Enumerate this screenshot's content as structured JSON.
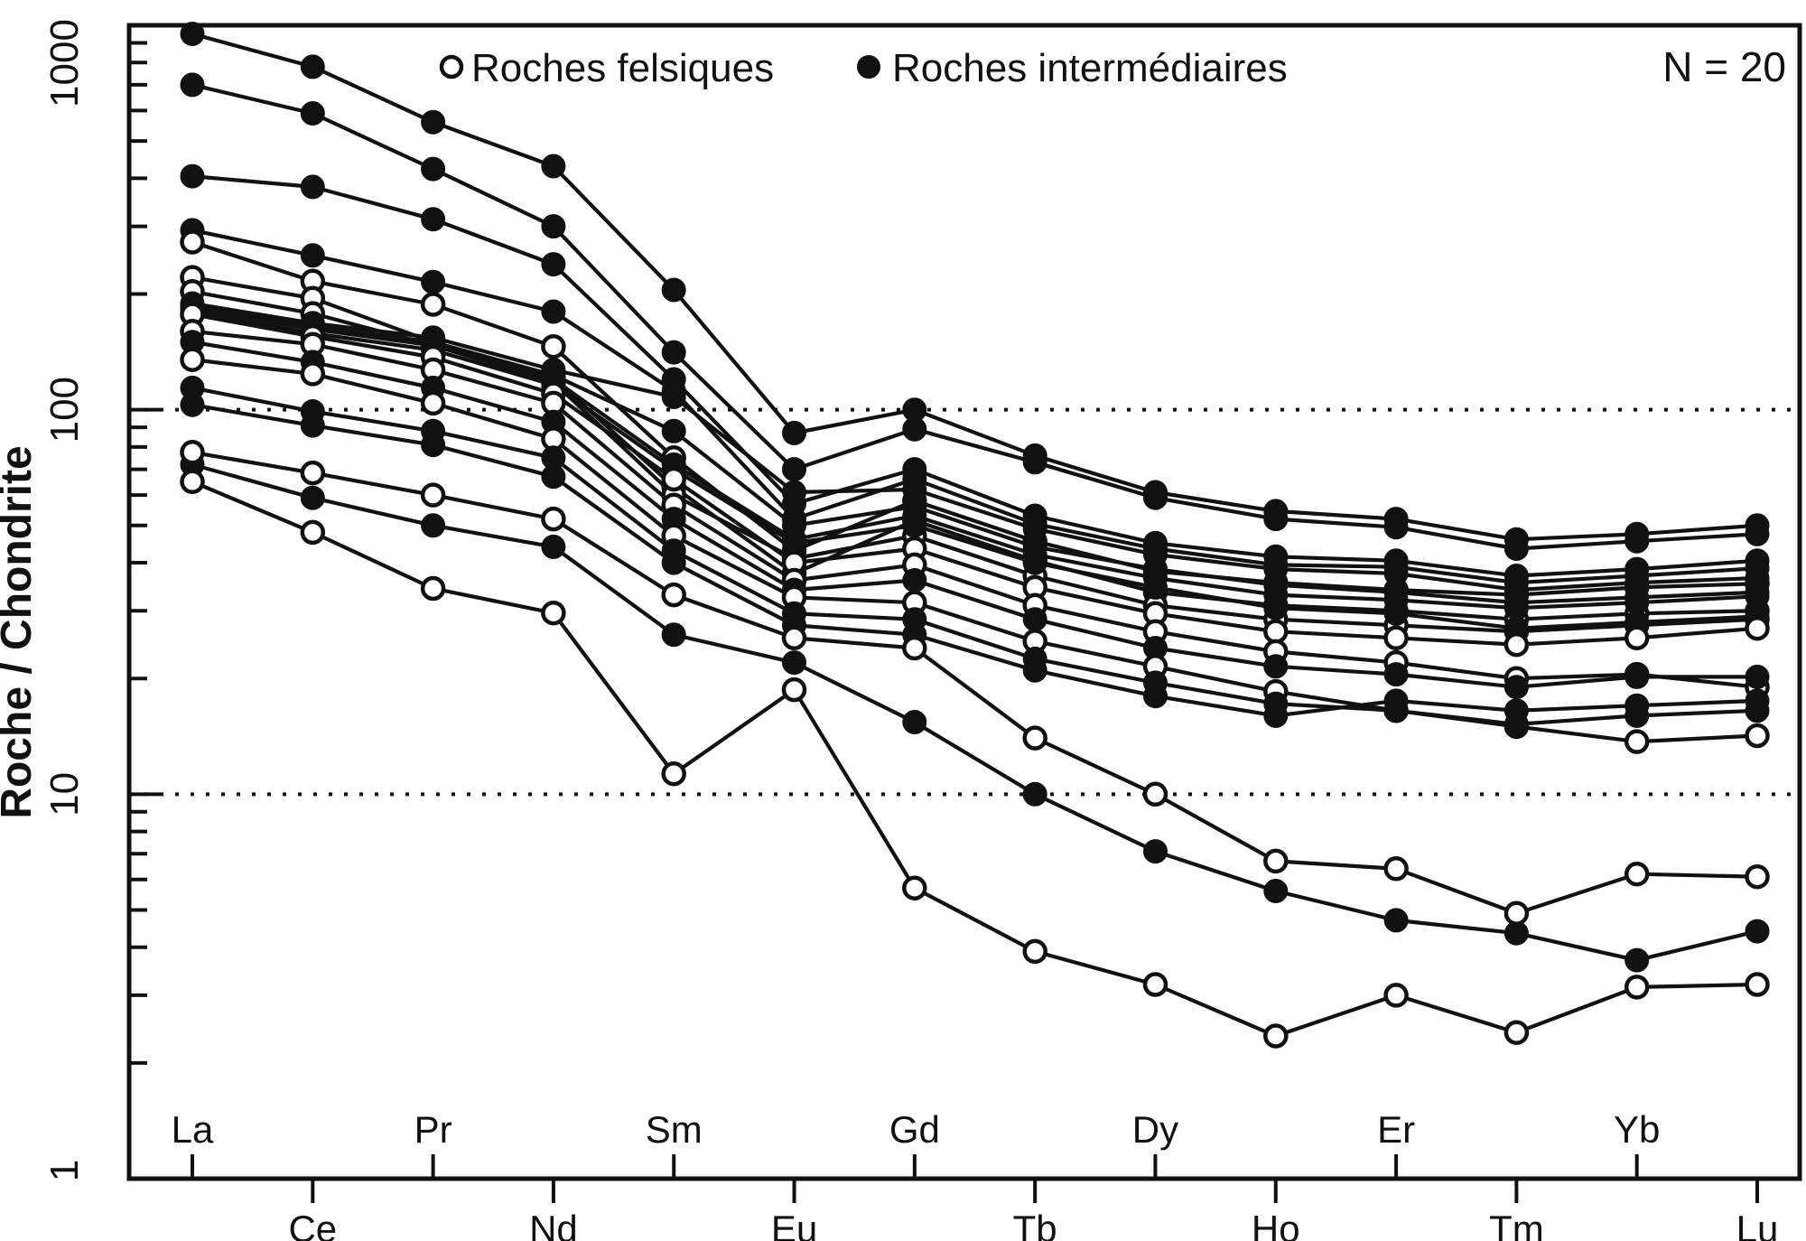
{
  "chart_data": {
    "type": "line",
    "title": "",
    "xlabel": "",
    "ylabel": "Roche / Chondrite",
    "annotation": "N = 20",
    "y_scale": "log",
    "ylim": [
      1,
      1000
    ],
    "y_ticks": [
      {
        "value": 1,
        "label": "1"
      },
      {
        "value": 10,
        "label": "10"
      },
      {
        "value": 100,
        "label": "100"
      },
      {
        "value": 1000,
        "label": "1000"
      }
    ],
    "dotted_gridlines": [
      10,
      100
    ],
    "grid": "horizontal-dotted-at-10-and-100-only",
    "legend_position": "top-inside",
    "legend": [
      {
        "label": "Roches felsiques",
        "marker": "open-circle"
      },
      {
        "label": "Roches intermédiaires",
        "marker": "filled-circle"
      }
    ],
    "categories": [
      "La",
      "Ce",
      "Pr",
      "Nd",
      "Sm",
      "Eu",
      "Gd",
      "Tb",
      "Dy",
      "Ho",
      "Er",
      "Tm",
      "Yb",
      "Lu"
    ],
    "series": [
      {
        "name": "intermediaire-01",
        "group": "Roches intermédiaires",
        "marker": "filled",
        "values": [
          950,
          780,
          560,
          430,
          205,
          87,
          100,
          76,
          61,
          54.5,
          52,
          46,
          47.5,
          50
        ]
      },
      {
        "name": "intermediaire-02",
        "group": "Roches intermédiaires",
        "marker": "filled",
        "values": [
          700,
          590,
          423,
          300,
          141,
          70,
          89,
          73,
          59,
          52,
          49.5,
          43.5,
          45.5,
          47.5
        ]
      },
      {
        "name": "intermediaire-03",
        "group": "Roches intermédiaires",
        "marker": "filled",
        "values": [
          405,
          380,
          313,
          239,
          120,
          57,
          70,
          53,
          45,
          41.5,
          40.5,
          37,
          38.5,
          40.5
        ]
      },
      {
        "name": "intermediaire-04",
        "group": "Roches intermédiaires",
        "marker": "filled",
        "values": [
          293,
          252,
          215,
          180,
          112,
          52,
          66,
          50.5,
          43.5,
          39.5,
          39,
          35.5,
          37,
          38.7
        ]
      },
      {
        "name": "felsique-01",
        "group": "Roches felsiques",
        "marker": "open",
        "values": [
          273,
          216,
          188,
          146,
          75,
          43,
          58,
          45.5,
          38,
          35.5,
          34,
          33,
          34.5,
          35.3
        ]
      },
      {
        "name": "felsique-02",
        "group": "Roches felsiques",
        "marker": "open",
        "values": [
          221,
          195,
          150,
          121,
          63,
          37.5,
          51.5,
          40.5,
          33.5,
          31,
          30,
          28.5,
          29.5,
          30
        ]
      },
      {
        "name": "felsique-03",
        "group": "Roches felsiques",
        "marker": "open",
        "values": [
          203,
          178,
          147,
          118,
          60,
          41,
          47,
          37,
          31,
          28.5,
          27.5,
          26.5,
          27.5,
          28.5
        ]
      },
      {
        "name": "intermediaire-05",
        "group": "Roches intermédiaires",
        "marker": "filled",
        "values": [
          189,
          168,
          154,
          127,
          108,
          61,
          62,
          49,
          42,
          38.5,
          37.5,
          34,
          35.5,
          36.5
        ]
      },
      {
        "name": "intermediaire-06",
        "group": "Roches intermédiaires",
        "marker": "filled",
        "values": [
          186,
          165,
          150,
          123,
          88,
          50,
          56,
          44,
          38.5,
          35,
          33.5,
          31.5,
          32.5,
          33.5
        ]
      },
      {
        "name": "intermediaire-07",
        "group": "Roches intermédiaires",
        "marker": "filled",
        "values": [
          183,
          162,
          147,
          120,
          72,
          46,
          53,
          42,
          36.5,
          33,
          32,
          30.5,
          31.5,
          32.7
        ]
      },
      {
        "name": "intermediaire-08",
        "group": "Roches intermédiaires",
        "marker": "filled",
        "values": [
          180,
          158,
          143,
          116,
          70,
          45,
          50,
          40,
          34.5,
          30.5,
          29.5,
          27,
          28,
          29
        ]
      },
      {
        "name": "felsique-04",
        "group": "Roches felsiques",
        "marker": "open",
        "values": [
          177,
          155,
          137,
          110,
          66,
          40,
          43.5,
          34.5,
          29.5,
          26.5,
          25.5,
          24.5,
          25.5,
          27
        ]
      },
      {
        "name": "felsique-05",
        "group": "Roches felsiques",
        "marker": "open",
        "values": [
          160,
          148,
          127,
          104,
          56.5,
          36,
          39.5,
          31,
          26.5,
          23.5,
          22,
          20,
          20.5,
          19
        ]
      },
      {
        "name": "intermediaire-09",
        "group": "Roches intermédiaires",
        "marker": "filled",
        "values": [
          150,
          133,
          114,
          93,
          52,
          34,
          36,
          28.5,
          24,
          21.5,
          20.5,
          19,
          20.2,
          20.2
        ]
      },
      {
        "name": "felsique-06",
        "group": "Roches felsiques",
        "marker": "open",
        "values": [
          135,
          124,
          104,
          84,
          47,
          32.5,
          31.5,
          25,
          21.5,
          18.5,
          16.5,
          15,
          13.7,
          14.2
        ]
      },
      {
        "name": "intermediaire-10",
        "group": "Roches intermédiaires",
        "marker": "filled",
        "values": [
          114,
          99,
          88,
          75,
          43,
          29.5,
          28.5,
          22.5,
          19.5,
          17.2,
          16.5,
          15.2,
          16,
          16.5
        ]
      },
      {
        "name": "intermediaire-11",
        "group": "Roches intermédiaires",
        "marker": "filled",
        "values": [
          103,
          91,
          81,
          67,
          40,
          27.5,
          26,
          21,
          18,
          16,
          17.5,
          16.5,
          17,
          17.5
        ]
      },
      {
        "name": "intermediaire-12",
        "group": "Roches intermédiaires",
        "marker": "filled",
        "values": [
          72,
          59,
          50,
          44,
          26,
          22,
          15.4,
          10,
          7.1,
          5.6,
          4.7,
          4.35,
          3.7,
          4.4
        ]
      },
      {
        "name": "felsique-07",
        "group": "Roches felsiques",
        "marker": "open",
        "values": [
          77.5,
          68.5,
          60,
          52,
          33,
          25.5,
          24,
          14,
          10,
          6.7,
          6.4,
          4.9,
          6.2,
          6.1
        ]
      },
      {
        "name": "felsique-08",
        "group": "Roches felsiques",
        "marker": "open",
        "values": [
          65,
          48,
          34.3,
          29.6,
          11.3,
          18.7,
          5.7,
          3.9,
          3.2,
          2.35,
          3.0,
          2.4,
          3.15,
          3.2
        ]
      }
    ]
  }
}
